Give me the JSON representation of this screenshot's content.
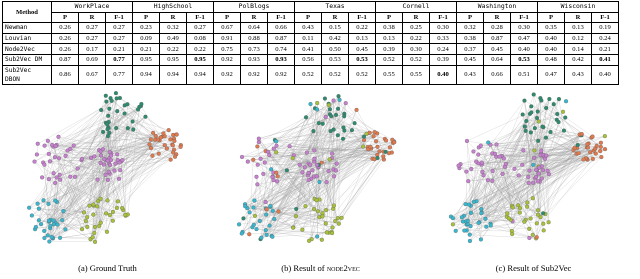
{
  "table": {
    "method_header": "Method",
    "datasets": [
      "WorkPlace",
      "HighSchool",
      "PolBlogs",
      "Texas",
      "Cornell",
      "Washington",
      "Wisconsin"
    ],
    "metrics": [
      "P",
      "R",
      "F-1"
    ],
    "rows": [
      {
        "method": "Newman",
        "values": [
          "0.26",
          "0.27",
          "0.27",
          "0.23",
          "0.32",
          "0.27",
          "0.67",
          "0.64",
          "0.66",
          "0.43",
          "0.15",
          "0.22",
          "0.38",
          "0.25",
          "0.30",
          "0.32",
          "0.28",
          "0.30",
          "0.35",
          "0.13",
          "0.19"
        ]
      },
      {
        "method": "Louvian",
        "values": [
          "0.26",
          "0.27",
          "0.27",
          "0.09",
          "0.49",
          "0.08",
          "0.91",
          "0.88",
          "0.87",
          "0.11",
          "0.42",
          "0.13",
          "0.13",
          "0.22",
          "0.33",
          "0.38",
          "0.87",
          "0.47",
          "0.40",
          "0.12",
          "0.24"
        ]
      },
      {
        "method": "Node2Vec",
        "values": [
          "0.26",
          "0.17",
          "0.21",
          "0.21",
          "0.22",
          "0.22",
          "0.75",
          "0.73",
          "0.74",
          "0.41",
          "0.50",
          "0.45",
          "0.39",
          "0.30",
          "0.24",
          "0.37",
          "0.45",
          "0.40",
          "0.40",
          "0.14",
          "0.21"
        ]
      },
      {
        "method": "Sub2Vec DM",
        "values": [
          "0.87",
          "0.69",
          "0.77",
          "0.95",
          "0.95",
          "0.95",
          "0.92",
          "0.93",
          "0.93",
          "0.56",
          "0.53",
          "0.53",
          "0.52",
          "0.52",
          "0.39",
          "0.45",
          "0.64",
          "0.53",
          "0.48",
          "0.42",
          "0.41"
        ]
      },
      {
        "method": "Sub2Vec DBON",
        "values": [
          "0.86",
          "0.67",
          "0.77",
          "0.94",
          "0.94",
          "0.94",
          "0.92",
          "0.92",
          "0.92",
          "0.52",
          "0.52",
          "0.52",
          "0.55",
          "0.55",
          "0.40",
          "0.43",
          "0.66",
          "0.51",
          "0.47",
          "0.43",
          "0.40"
        ]
      }
    ],
    "bold": [
      [
        3,
        2
      ],
      [
        3,
        5
      ],
      [
        3,
        8
      ],
      [
        3,
        11
      ],
      [
        3,
        17
      ],
      [
        3,
        20
      ],
      [
        4,
        14
      ]
    ]
  },
  "captions": [
    {
      "text": "(a) Ground Truth"
    },
    {
      "text": "(b) Result of",
      "name": "node2vec"
    },
    {
      "text": "(c) Result of Sub2Vec"
    }
  ]
}
